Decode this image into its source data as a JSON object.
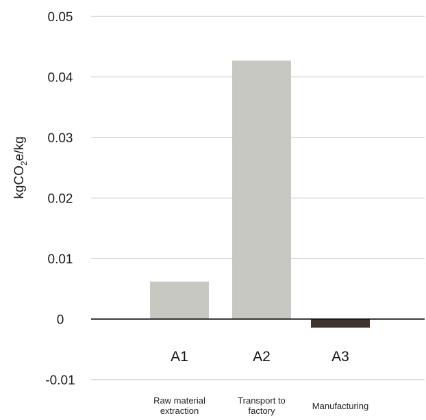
{
  "chart_data": {
    "type": "bar",
    "title": "",
    "xlabel": "",
    "ylabel": {
      "prefix": "kgCO",
      "subscript": "2",
      "suffix": "e/kg"
    },
    "ylim": [
      -0.01,
      0.05
    ],
    "yticks": [
      0.05,
      0.04,
      0.03,
      0.02,
      0.01,
      0,
      -0.01
    ],
    "ytick_labels": [
      "0.05",
      "0.04",
      "0.03",
      "0.02",
      "0.01",
      "0",
      "-0.01"
    ],
    "grid": true,
    "categories": [
      {
        "code": "A1",
        "label": [
          "Raw material",
          "extraction"
        ]
      },
      {
        "code": "A2",
        "label": [
          "Transport to",
          "factory"
        ]
      },
      {
        "code": "A3",
        "label": [
          "Manufacturing"
        ]
      }
    ],
    "values": [
      0.0062,
      0.0427,
      -0.0014
    ],
    "colors": {
      "positive": "#c7c8c2",
      "negative": "#3f332d",
      "grid": "#bdbdbd",
      "zero_line": "#111111"
    }
  }
}
